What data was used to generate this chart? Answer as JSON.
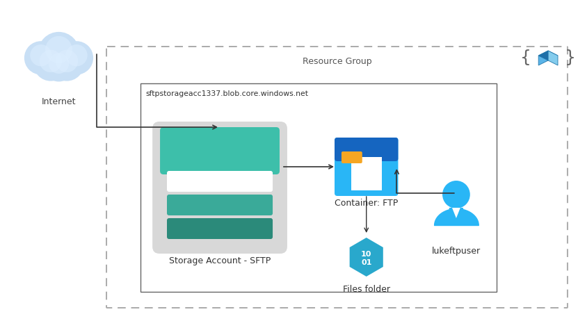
{
  "bg_color": "#ffffff",
  "resource_group_label": "Resource Group",
  "storage_label": "Storage Account - SFTP",
  "storage_url": "sftpstorageacc1337.blob.core.windows.net",
  "container_label": "Container: FTP",
  "files_label": "Files folder",
  "user_label": "lukeftpuser",
  "internet_label": "Internet",
  "cloud_color_main": "#c5dff5",
  "cloud_color_light": "#ddeeff",
  "teal_top": "#3dbfaa",
  "teal_mid": "#3aaa99",
  "teal_dark": "#2b8a7a",
  "storage_bg": "#d8d8d8",
  "folder_dark_blue": "#1a6dc0",
  "folder_light_blue": "#29b6f6",
  "folder_tab_orange": "#f5a623",
  "hex_color": "#29a8cc",
  "user_color": "#29b6f6",
  "dashed_color": "#aaaaaa",
  "arrow_color": "#333333",
  "cube_front": "#64b5f6",
  "cube_top": "#1976d2",
  "cube_right": "#42a5f5"
}
